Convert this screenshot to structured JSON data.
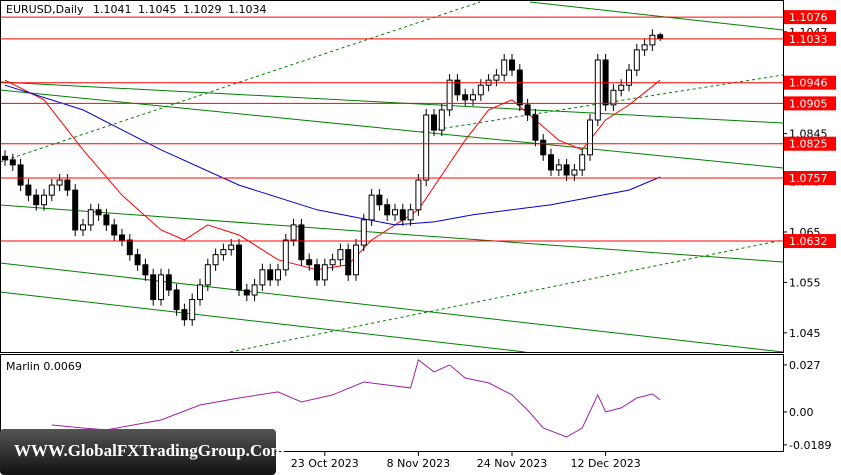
{
  "chart_data": [
    {
      "type": "candlestick",
      "symbol": "EURUSD,Daily",
      "categories": [
        null,
        null,
        null,
        null,
        null,
        null,
        null,
        null,
        null,
        null,
        null,
        null,
        null,
        null,
        null,
        null,
        null,
        null,
        null,
        null,
        null,
        null,
        null,
        null,
        null,
        null,
        null,
        null,
        null,
        null,
        null,
        null,
        null,
        null,
        null,
        null,
        null,
        null,
        null,
        null,
        null,
        "23 Oct 2023",
        null,
        null,
        null,
        null,
        null,
        null,
        null,
        null,
        null,
        null,
        null,
        "8 Nov 2023",
        null,
        null,
        null,
        null,
        null,
        null,
        null,
        null,
        null,
        null,
        null,
        "24 Nov 2023",
        null,
        null,
        null,
        null,
        null,
        null,
        null,
        null,
        null,
        null,
        null,
        "12 Dec 2023",
        null,
        null,
        null,
        null,
        null,
        null,
        null
      ],
      "open": [
        1.08,
        1.0793,
        1.0783,
        1.0743,
        1.0723,
        1.0704,
        1.0723,
        1.0743,
        1.0753,
        1.0733,
        1.0654,
        1.0664,
        1.0694,
        1.0684,
        1.0664,
        1.0644,
        1.0634,
        1.0605,
        1.0585,
        1.0565,
        1.0516,
        1.0565,
        1.0535,
        1.0496,
        1.0476,
        1.0516,
        1.0545,
        1.0585,
        1.0605,
        1.0615,
        1.0624,
        1.0535,
        1.0525,
        1.0545,
        1.0575,
        1.0555,
        1.0575,
        1.0634,
        1.0664,
        1.0595,
        1.0585,
        1.0555,
        1.0585,
        1.0595,
        1.0615,
        1.0565,
        1.0624,
        1.0674,
        1.0723,
        1.0704,
        1.0684,
        1.0694,
        1.0674,
        1.0694,
        1.0753,
        1.0882,
        1.0852,
        1.0892,
        1.0951,
        1.0922,
        1.0912,
        1.0922,
        1.0941,
        1.0951,
        1.0961,
        1.0991,
        1.0971,
        1.0902,
        1.0882,
        1.0832,
        1.0803,
        1.0773,
        1.0783,
        1.0763,
        1.0773,
        1.0803,
        1.0872,
        1.0991,
        1.0902,
        1.0931,
        1.0941,
        1.0971,
        1.1011,
        1.1021,
        1.1041
      ],
      "high": [
        1.0812,
        1.0805,
        1.0795,
        1.0755,
        1.0735,
        1.0735,
        1.0755,
        1.0765,
        1.0765,
        1.0745,
        1.0676,
        1.0706,
        1.0706,
        1.0696,
        1.0676,
        1.0656,
        1.0646,
        1.0617,
        1.0597,
        1.0577,
        1.0577,
        1.0577,
        1.0547,
        1.0508,
        1.0528,
        1.0557,
        1.0597,
        1.0617,
        1.0627,
        1.0636,
        1.0636,
        1.0547,
        1.0557,
        1.0587,
        1.0587,
        1.0587,
        1.0646,
        1.0676,
        1.0676,
        1.0607,
        1.0597,
        1.0597,
        1.0607,
        1.0627,
        1.0627,
        1.0636,
        1.0686,
        1.0735,
        1.0735,
        1.0716,
        1.0706,
        1.0706,
        1.0706,
        1.0765,
        1.0894,
        1.0894,
        1.0904,
        1.0963,
        1.0963,
        1.0934,
        1.0934,
        1.0953,
        1.0963,
        1.0973,
        1.1003,
        1.1003,
        1.0983,
        1.0914,
        1.0894,
        1.0844,
        1.0815,
        1.0795,
        1.0795,
        1.0785,
        1.0815,
        1.0884,
        1.1003,
        1.1003,
        1.0943,
        1.0953,
        1.0983,
        1.1023,
        1.1033,
        1.1052,
        1.1045
      ],
      "low": [
        1.0781,
        1.0771,
        1.0731,
        1.0711,
        1.0692,
        1.0692,
        1.0711,
        1.0731,
        1.0721,
        1.0642,
        1.0642,
        1.0652,
        1.0672,
        1.0652,
        1.0632,
        1.0622,
        1.0593,
        1.0573,
        1.0553,
        1.0504,
        1.0504,
        1.0523,
        1.0484,
        1.0464,
        1.0464,
        1.0504,
        1.0533,
        1.0573,
        1.0593,
        1.0603,
        1.0523,
        1.0513,
        1.0513,
        1.0533,
        1.0543,
        1.0543,
        1.0563,
        1.0622,
        1.0583,
        1.0573,
        1.0543,
        1.0543,
        1.0573,
        1.0583,
        1.0553,
        1.0553,
        1.0612,
        1.0662,
        1.0692,
        1.0672,
        1.0672,
        1.0662,
        1.0662,
        1.0682,
        1.0741,
        1.084,
        1.084,
        1.088,
        1.091,
        1.09,
        1.09,
        1.091,
        1.0929,
        1.0939,
        1.0949,
        1.0959,
        1.089,
        1.087,
        1.082,
        1.0791,
        1.0761,
        1.0761,
        1.0751,
        1.0751,
        1.0761,
        1.0791,
        1.086,
        1.089,
        1.089,
        1.0919,
        1.0929,
        1.0959,
        1.0999,
        1.1009,
        1.1029
      ],
      "close": [
        1.0793,
        1.0783,
        1.0743,
        1.0723,
        1.0704,
        1.0723,
        1.0743,
        1.0753,
        1.0733,
        1.0654,
        1.0664,
        1.0694,
        1.0684,
        1.0664,
        1.0644,
        1.0634,
        1.0605,
        1.0585,
        1.0565,
        1.0516,
        1.0565,
        1.0535,
        1.0496,
        1.0476,
        1.0516,
        1.0545,
        1.0585,
        1.0605,
        1.0615,
        1.0624,
        1.0535,
        1.0525,
        1.0545,
        1.0575,
        1.0555,
        1.0575,
        1.0634,
        1.0664,
        1.0595,
        1.0585,
        1.0555,
        1.0585,
        1.0595,
        1.0615,
        1.0565,
        1.0624,
        1.0674,
        1.0723,
        1.0704,
        1.0684,
        1.0694,
        1.0674,
        1.0694,
        1.0753,
        1.0882,
        1.0852,
        1.0892,
        1.0951,
        1.0922,
        1.0912,
        1.0922,
        1.0941,
        1.0951,
        1.0961,
        1.0991,
        1.0971,
        1.0902,
        1.0882,
        1.0832,
        1.0803,
        1.0773,
        1.0783,
        1.0763,
        1.0773,
        1.0803,
        1.0872,
        1.0991,
        1.0902,
        1.0931,
        1.0941,
        1.0971,
        1.1011,
        1.1021,
        1.104,
        1.1034
      ],
      "ylim": [
        1.0412,
        1.1106
      ],
      "yticks": [
        1.045,
        1.055,
        1.065,
        1.075,
        1.0845,
        1.0947,
        1.1047
      ],
      "levels": [
        1.1076,
        1.1033,
        1.0946,
        1.0905,
        1.0825,
        1.0757,
        1.0632
      ],
      "level_color": "#ff0000",
      "overlays": [
        {
          "color": "#ff0000",
          "x": [
            0,
            5,
            10,
            15,
            20,
            23,
            26,
            30,
            35,
            40,
            44,
            47,
            50,
            53,
            56,
            59,
            62,
            65,
            68,
            71,
            74,
            77,
            80,
            84
          ],
          "values": [
            1.0951,
            1.0912,
            1.0813,
            1.0723,
            1.0654,
            1.0634,
            1.0664,
            1.0644,
            1.0595,
            1.0575,
            1.0585,
            1.0634,
            1.0664,
            1.0694,
            1.0763,
            1.0832,
            1.0892,
            1.0912,
            1.0872,
            1.0832,
            1.0813,
            1.0872,
            1.0902,
            1.0951
          ]
        },
        {
          "color": "#0000cc",
          "x": [
            0,
            10,
            20,
            30,
            40,
            50,
            55,
            60,
            70,
            80,
            84
          ],
          "values": [
            1.0941,
            1.0892,
            1.0813,
            1.0743,
            1.0694,
            1.0664,
            1.067,
            1.0684,
            1.0704,
            1.0733,
            1.0759
          ]
        }
      ]
    },
    {
      "type": "line",
      "series": [
        {
          "name": "Marlin",
          "color": "#a020a0",
          "x": [
            6,
            10,
            13,
            20,
            25,
            30,
            35,
            38,
            42,
            46,
            49,
            52,
            53,
            55,
            57,
            59,
            62,
            65,
            67,
            69,
            72,
            74,
            76,
            77,
            79,
            81,
            83,
            84
          ],
          "values": [
            -0.0075,
            -0.0092,
            -0.0103,
            -0.0046,
            0.004,
            0.008,
            0.0115,
            0.0057,
            0.0098,
            0.0172,
            0.0155,
            0.0138,
            0.0299,
            0.023,
            0.027,
            0.0195,
            0.0167,
            0.0098,
            0.0011,
            -0.0092,
            -0.0144,
            -0.0092,
            0.0098,
            0,
            0.0023,
            0.008,
            0.0103,
            0.0069
          ]
        }
      ],
      "ylim": [
        -0.023,
        0.0327
      ],
      "yticks": [
        0.027,
        {
          "value": 0,
          "label": "0.00"
        },
        -0.0189
      ]
    }
  ],
  "watermark": "WWW.GlobalFXTradingGroup.Com"
}
